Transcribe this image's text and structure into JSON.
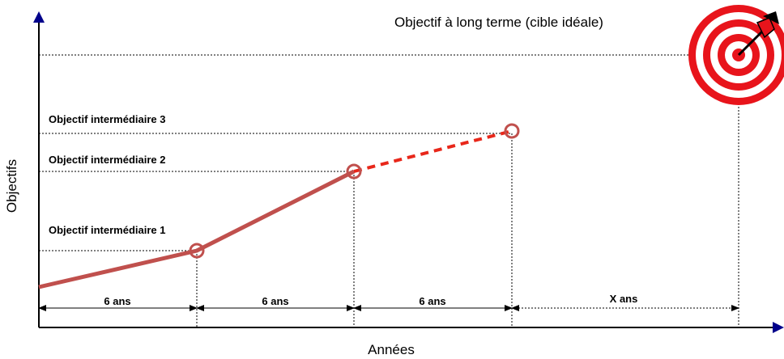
{
  "axes": {
    "y_label": "Objectifs",
    "x_label": "Années"
  },
  "long_term_goal": "Objectif à long terme (cible  idéale)",
  "goals": [
    {
      "label": "Objectif intermédiaire 1"
    },
    {
      "label": "Objectif intermédiaire 2"
    },
    {
      "label": "Objectif intermédiaire 3"
    }
  ],
  "intervals": [
    "6 ans",
    "6 ans",
    "6 ans",
    "X ans"
  ]
}
